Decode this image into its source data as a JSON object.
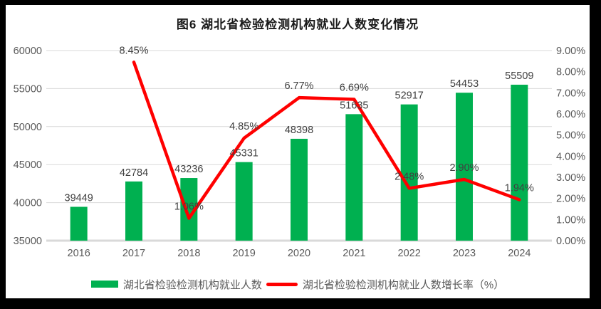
{
  "window": {
    "frame_color": "#000000",
    "surface_color": "#ffffff"
  },
  "chart_data": {
    "type": "combo",
    "title": "图6  湖北省检验检测机构就业人数变化情况",
    "categories": [
      "2016",
      "2017",
      "2018",
      "2019",
      "2020",
      "2021",
      "2022",
      "2023",
      "2024"
    ],
    "series": [
      {
        "name": "湖北省检验检测机构就业人数",
        "type": "bar",
        "axis": "left",
        "color": "#00B050",
        "values": [
          39449,
          42784,
          43236,
          45331,
          48398,
          51635,
          52917,
          54453,
          55509
        ],
        "labels": [
          "39449",
          "42784",
          "43236",
          "45331",
          "48398",
          "51635",
          "52917",
          "54453",
          "55509"
        ]
      },
      {
        "name": "湖北省检验检测机构就业人数增长率（%）",
        "type": "line",
        "axis": "right",
        "color": "#FF0000",
        "values": [
          null,
          8.45,
          1.06,
          4.85,
          6.77,
          6.69,
          2.48,
          2.9,
          1.94
        ],
        "labels": [
          "",
          "8.45%",
          "1.06%",
          "4.85%",
          "6.77%",
          "6.69%",
          "2.48%",
          "2.90%",
          "1.94%"
        ]
      }
    ],
    "left_axis": {
      "min": 35000,
      "max": 60000,
      "step": 5000,
      "ticks": [
        "35000",
        "40000",
        "45000",
        "50000",
        "55000",
        "60000"
      ]
    },
    "right_axis": {
      "min": 0,
      "max": 9,
      "step": 1,
      "ticks": [
        "0.00%",
        "1.00%",
        "2.00%",
        "3.00%",
        "4.00%",
        "5.00%",
        "6.00%",
        "7.00%",
        "8.00%",
        "9.00%"
      ]
    },
    "grid": true,
    "gridline_color": "#d9d9d9",
    "axis_label_color": "#595959",
    "data_label_color": "#404040",
    "legend_position": "bottom"
  }
}
